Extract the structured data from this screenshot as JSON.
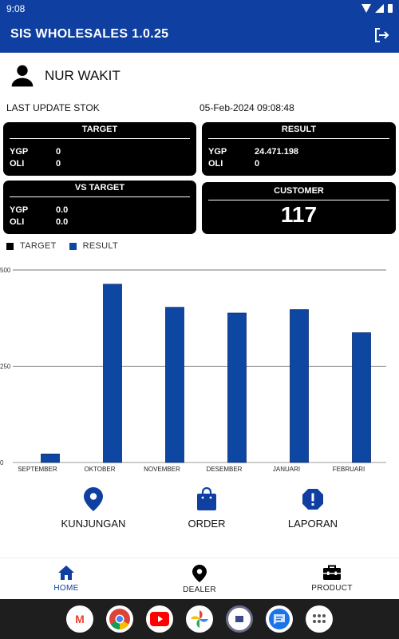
{
  "status_bar": {
    "time": "9:08"
  },
  "app_bar": {
    "title": "SIS WHOLESALES  1.0.25"
  },
  "user": {
    "name": "NUR WAKIT"
  },
  "stock_update": {
    "label": "LAST UPDATE STOK",
    "value": "05-Feb-2024 09:08:48"
  },
  "cards": {
    "target": {
      "title": "TARGET",
      "rows": [
        {
          "key": "YGP",
          "value": "0"
        },
        {
          "key": "OLI",
          "value": "0"
        }
      ]
    },
    "result": {
      "title": "RESULT",
      "rows": [
        {
          "key": "YGP",
          "value": "24.471.198"
        },
        {
          "key": "OLI",
          "value": "0"
        }
      ]
    },
    "vs_target": {
      "title": "VS TARGET",
      "rows": [
        {
          "key": "YGP",
          "value": "0.0"
        },
        {
          "key": "OLI",
          "value": "0.0"
        }
      ]
    },
    "customer": {
      "title": "CUSTOMER",
      "value": "117"
    }
  },
  "chart_data": {
    "type": "bar",
    "categories": [
      "SEPTEMBER",
      "OKTOBER",
      "NOVEMBER",
      "DESEMBER",
      "JANUARI",
      "FEBRUARI"
    ],
    "series": [
      {
        "name": "TARGET",
        "color": "#000000",
        "values": [
          0,
          0,
          0,
          0,
          0,
          0
        ]
      },
      {
        "name": "RESULT",
        "color": "#0d47a1",
        "values": [
          22,
          463,
          403,
          388,
          397,
          337
        ]
      }
    ],
    "ylim": [
      0,
      500
    ],
    "yticks": [
      "0",
      "250",
      "500"
    ],
    "grid": true,
    "legend_position": "top-left"
  },
  "actions": [
    {
      "label": "KUNJUNGAN",
      "icon": "map-pin-icon"
    },
    {
      "label": "ORDER",
      "icon": "shopping-bag-icon"
    },
    {
      "label": "LAPORAN",
      "icon": "alert-octagon-icon"
    }
  ],
  "bottom_nav": [
    {
      "label": "HOME",
      "icon": "home-icon",
      "active": true
    },
    {
      "label": "DEALER",
      "icon": "location-icon",
      "active": false
    },
    {
      "label": "PRODUCT",
      "icon": "toolbox-icon",
      "active": false
    }
  ],
  "dock": [
    {
      "name": "gmail-icon",
      "glyph": "M",
      "color": "#ea4335"
    },
    {
      "name": "chrome-icon",
      "glyph": "",
      "color": "#34a853"
    },
    {
      "name": "youtube-icon",
      "glyph": "",
      "color": "#ff0000"
    },
    {
      "name": "photos-icon",
      "glyph": "",
      "color": "#fbbc04"
    },
    {
      "name": "app-icon",
      "glyph": "",
      "color": "#0f3fa0"
    },
    {
      "name": "messages-icon",
      "glyph": "",
      "color": "#1a73e8"
    },
    {
      "name": "app-drawer-icon",
      "glyph": "",
      "color": "#555555"
    }
  ]
}
